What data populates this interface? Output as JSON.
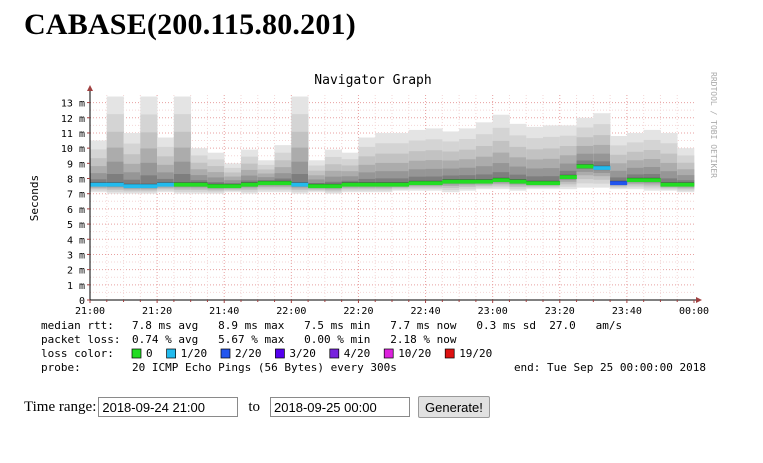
{
  "page": {
    "title": "CABASE(200.115.80.201)"
  },
  "graph": {
    "title": "Navigator Graph",
    "ylabel": "Seconds",
    "watermark": "RRDTOOL / TOBI OETIKER",
    "legend": {
      "rtt_label": "median rtt:",
      "rtt_values": "7.8 ms avg   8.9 ms max   7.5 ms min   7.7 ms now   0.3 ms sd  27.0   am/s",
      "loss_label": "packet loss:",
      "loss_values": "0.74 % avg   5.67 % max   0.00 % min   2.18 % now",
      "color_label": "loss color:",
      "color_items": [
        {
          "label": "0",
          "color": "#22dd22"
        },
        {
          "label": "1/20",
          "color": "#22bbee"
        },
        {
          "label": "2/20",
          "color": "#2255ee"
        },
        {
          "label": "3/20",
          "color": "#5500ee"
        },
        {
          "label": "4/20",
          "color": "#7722dd"
        },
        {
          "label": "10/20",
          "color": "#dd22dd"
        },
        {
          "label": "19/20",
          "color": "#dd1111"
        }
      ],
      "probe_label": "probe:",
      "probe_value": "20 ICMP Echo Pings (56 Bytes) every 300s",
      "end_value": "end: Tue Sep 25 00:00:00 2018"
    }
  },
  "chart_data": {
    "type": "area",
    "title": "Navigator Graph",
    "ylabel": "Seconds",
    "xlabel": "",
    "x_ticks": [
      "21:00",
      "21:20",
      "21:40",
      "22:00",
      "22:20",
      "22:40",
      "23:00",
      "23:20",
      "23:40",
      "00:00"
    ],
    "y_ticks": [
      "0",
      "1 m",
      "2 m",
      "3 m",
      "4 m",
      "5 m",
      "6 m",
      "7 m",
      "8 m",
      "9 m",
      "10 m",
      "11 m",
      "12 m",
      "13 m"
    ],
    "ylim_ms": [
      0,
      13.5
    ],
    "x_start": "21:00",
    "step_minutes": 5,
    "median_rtt_ms": [
      7.6,
      7.6,
      7.5,
      7.5,
      7.6,
      7.6,
      7.6,
      7.5,
      7.5,
      7.6,
      7.7,
      7.7,
      7.6,
      7.5,
      7.5,
      7.6,
      7.6,
      7.6,
      7.6,
      7.7,
      7.7,
      7.8,
      7.8,
      7.8,
      7.9,
      7.8,
      7.7,
      7.7,
      8.1,
      8.8,
      8.7,
      7.7,
      7.9,
      7.9,
      7.6,
      7.6
    ],
    "smoke_max_ms": [
      10.5,
      13.4,
      11.0,
      13.4,
      10.7,
      13.4,
      10.0,
      9.7,
      9.0,
      9.9,
      9.2,
      10.2,
      13.4,
      9.2,
      9.9,
      9.7,
      10.7,
      11.0,
      11.0,
      11.2,
      11.3,
      11.1,
      11.3,
      11.7,
      12.2,
      11.6,
      11.4,
      11.5,
      11.5,
      12.0,
      12.3,
      10.8,
      11.0,
      11.2,
      11.0,
      10.0
    ],
    "smoke_min_ms": [
      7.1,
      7.0,
      7.0,
      7.0,
      7.1,
      7.0,
      7.0,
      7.0,
      7.1,
      7.0,
      7.1,
      7.1,
      7.0,
      7.1,
      7.0,
      7.1,
      7.1,
      7.1,
      7.2,
      7.2,
      7.2,
      7.1,
      7.2,
      7.3,
      7.3,
      7.2,
      7.3,
      7.3,
      7.3,
      7.4,
      7.4,
      7.3,
      7.3,
      7.2,
      7.2,
      7.1
    ],
    "loss_bucket": [
      1,
      1,
      1,
      1,
      1,
      0,
      0,
      0,
      0,
      0,
      0,
      0,
      1,
      0,
      0,
      0,
      0,
      0,
      0,
      0,
      0,
      0,
      0,
      0,
      0,
      0,
      0,
      0,
      0,
      0,
      1,
      2,
      0,
      0,
      0,
      0
    ],
    "legend_placement": "bottom",
    "grid": true
  },
  "form": {
    "range_label": "Time range:",
    "start_value": "2018-09-24 21:00",
    "to_label": "to",
    "end_value": "2018-09-25 00:00",
    "button_label": "Generate!"
  }
}
